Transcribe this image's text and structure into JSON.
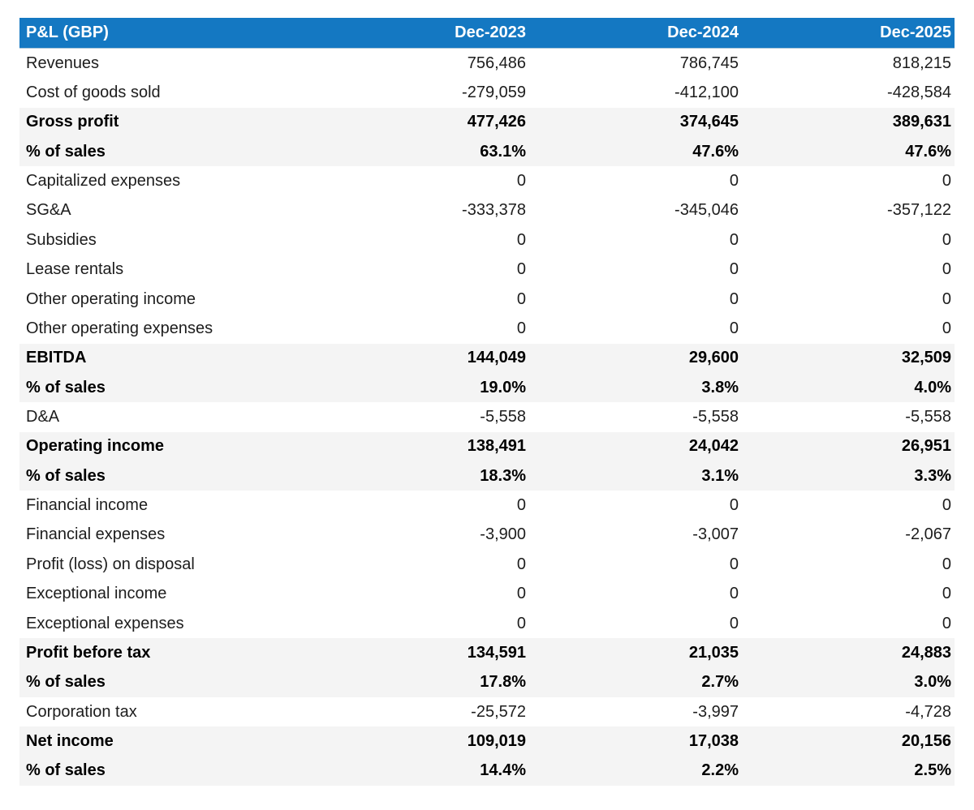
{
  "colors": {
    "header_bg": "#1478C2",
    "header_text": "#ffffff",
    "subtotal_row_bg": "#f4f4f4",
    "body_text": "#1d1d1d",
    "page_bg": "#ffffff"
  },
  "table": {
    "title": "P&L (GBP)",
    "columns": [
      "Dec-2023",
      "Dec-2024",
      "Dec-2025"
    ],
    "rows": [
      {
        "label": "Revenues",
        "values": [
          "756,486",
          "786,745",
          "818,215"
        ],
        "emphasis": false
      },
      {
        "label": "Cost of goods sold",
        "values": [
          "-279,059",
          "-412,100",
          "-428,584"
        ],
        "emphasis": false
      },
      {
        "label": "Gross profit",
        "values": [
          "477,426",
          "374,645",
          "389,631"
        ],
        "emphasis": true
      },
      {
        "label": "% of sales",
        "values": [
          "63.1%",
          "47.6%",
          "47.6%"
        ],
        "emphasis": true
      },
      {
        "label": "Capitalized expenses",
        "values": [
          "0",
          "0",
          "0"
        ],
        "emphasis": false
      },
      {
        "label": "SG&A",
        "values": [
          "-333,378",
          "-345,046",
          "-357,122"
        ],
        "emphasis": false
      },
      {
        "label": "Subsidies",
        "values": [
          "0",
          "0",
          "0"
        ],
        "emphasis": false
      },
      {
        "label": "Lease rentals",
        "values": [
          "0",
          "0",
          "0"
        ],
        "emphasis": false
      },
      {
        "label": "Other operating income",
        "values": [
          "0",
          "0",
          "0"
        ],
        "emphasis": false
      },
      {
        "label": "Other operating expenses",
        "values": [
          "0",
          "0",
          "0"
        ],
        "emphasis": false
      },
      {
        "label": "EBITDA",
        "values": [
          "144,049",
          "29,600",
          "32,509"
        ],
        "emphasis": true
      },
      {
        "label": "% of sales",
        "values": [
          "19.0%",
          "3.8%",
          "4.0%"
        ],
        "emphasis": true
      },
      {
        "label": "D&A",
        "values": [
          "-5,558",
          "-5,558",
          "-5,558"
        ],
        "emphasis": false
      },
      {
        "label": "Operating income",
        "values": [
          "138,491",
          "24,042",
          "26,951"
        ],
        "emphasis": true
      },
      {
        "label": "% of sales",
        "values": [
          "18.3%",
          "3.1%",
          "3.3%"
        ],
        "emphasis": true
      },
      {
        "label": "Financial income",
        "values": [
          "0",
          "0",
          "0"
        ],
        "emphasis": false
      },
      {
        "label": "Financial expenses",
        "values": [
          "-3,900",
          "-3,007",
          "-2,067"
        ],
        "emphasis": false
      },
      {
        "label": "Profit (loss) on disposal",
        "values": [
          "0",
          "0",
          "0"
        ],
        "emphasis": false
      },
      {
        "label": "Exceptional income",
        "values": [
          "0",
          "0",
          "0"
        ],
        "emphasis": false
      },
      {
        "label": "Exceptional expenses",
        "values": [
          "0",
          "0",
          "0"
        ],
        "emphasis": false
      },
      {
        "label": "Profit before tax",
        "values": [
          "134,591",
          "21,035",
          "24,883"
        ],
        "emphasis": true
      },
      {
        "label": "% of sales",
        "values": [
          "17.8%",
          "2.7%",
          "3.0%"
        ],
        "emphasis": true
      },
      {
        "label": "Corporation tax",
        "values": [
          "-25,572",
          "-3,997",
          "-4,728"
        ],
        "emphasis": false
      },
      {
        "label": "Net income",
        "values": [
          "109,019",
          "17,038",
          "20,156"
        ],
        "emphasis": true
      },
      {
        "label": "% of sales",
        "values": [
          "14.4%",
          "2.2%",
          "2.5%"
        ],
        "emphasis": true
      }
    ]
  },
  "chart_data": {
    "type": "table",
    "title": "P&L (GBP)",
    "columns": [
      "Dec-2023",
      "Dec-2024",
      "Dec-2025"
    ],
    "rows": [
      {
        "label": "Revenues",
        "values": [
          756486,
          786745,
          818215
        ]
      },
      {
        "label": "Cost of goods sold",
        "values": [
          -279059,
          -412100,
          -428584
        ]
      },
      {
        "label": "Gross profit",
        "values": [
          477426,
          374645,
          389631
        ]
      },
      {
        "label": "Gross profit % of sales",
        "values": [
          63.1,
          47.6,
          47.6
        ],
        "unit": "%"
      },
      {
        "label": "Capitalized expenses",
        "values": [
          0,
          0,
          0
        ]
      },
      {
        "label": "SG&A",
        "values": [
          -333378,
          -345046,
          -357122
        ]
      },
      {
        "label": "Subsidies",
        "values": [
          0,
          0,
          0
        ]
      },
      {
        "label": "Lease rentals",
        "values": [
          0,
          0,
          0
        ]
      },
      {
        "label": "Other operating income",
        "values": [
          0,
          0,
          0
        ]
      },
      {
        "label": "Other operating expenses",
        "values": [
          0,
          0,
          0
        ]
      },
      {
        "label": "EBITDA",
        "values": [
          144049,
          29600,
          32509
        ]
      },
      {
        "label": "EBITDA % of sales",
        "values": [
          19.0,
          3.8,
          4.0
        ],
        "unit": "%"
      },
      {
        "label": "D&A",
        "values": [
          -5558,
          -5558,
          -5558
        ]
      },
      {
        "label": "Operating income",
        "values": [
          138491,
          24042,
          26951
        ]
      },
      {
        "label": "Operating income % of sales",
        "values": [
          18.3,
          3.1,
          3.3
        ],
        "unit": "%"
      },
      {
        "label": "Financial income",
        "values": [
          0,
          0,
          0
        ]
      },
      {
        "label": "Financial expenses",
        "values": [
          -3900,
          -3007,
          -2067
        ]
      },
      {
        "label": "Profit (loss) on disposal",
        "values": [
          0,
          0,
          0
        ]
      },
      {
        "label": "Exceptional income",
        "values": [
          0,
          0,
          0
        ]
      },
      {
        "label": "Exceptional expenses",
        "values": [
          0,
          0,
          0
        ]
      },
      {
        "label": "Profit before tax",
        "values": [
          134591,
          21035,
          24883
        ]
      },
      {
        "label": "Profit before tax % of sales",
        "values": [
          17.8,
          2.7,
          3.0
        ],
        "unit": "%"
      },
      {
        "label": "Corporation tax",
        "values": [
          -25572,
          -3997,
          -4728
        ]
      },
      {
        "label": "Net income",
        "values": [
          109019,
          17038,
          20156
        ]
      },
      {
        "label": "Net income % of sales",
        "values": [
          14.4,
          2.2,
          2.5
        ],
        "unit": "%"
      }
    ]
  }
}
